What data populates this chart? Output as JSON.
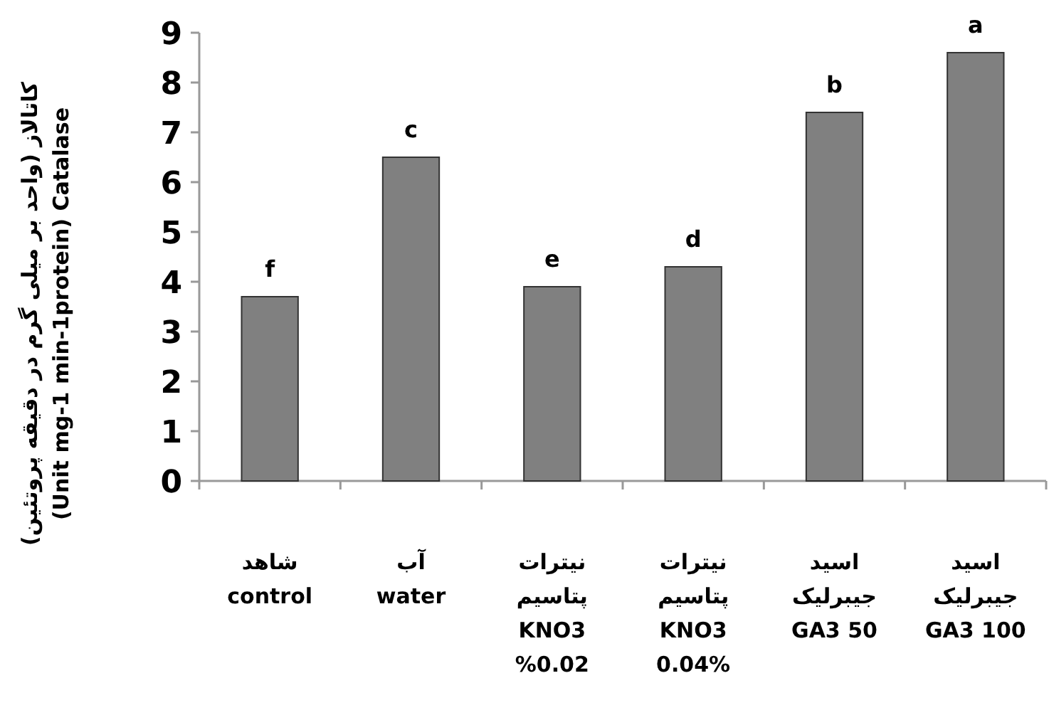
{
  "chart_data": {
    "type": "bar",
    "ylabel": "کاتالاز (واحد بر میلی گرم در دقیقه پروتئین)\n(Unit mg-1 min-1protein) Catalase",
    "categories": [
      "شاهد\ncontrol",
      "آب\nwater",
      "نیترات\nپتاسیم\nKNO3\n%0.02",
      "نیترات\nپتاسیم\nKNO3\n0.04%",
      "اسید\nجیبرلیک\nGA3 50",
      "اسید\nجیبرلیک\nGA3 100"
    ],
    "values": [
      3.7,
      6.5,
      3.9,
      4.3,
      7.4,
      8.6
    ],
    "color": "#808080",
    "ylim": [
      0,
      9
    ],
    "yticks": [
      0,
      1,
      2,
      3,
      4,
      5,
      6,
      7,
      8,
      9
    ],
    "annotations": [
      {
        "text": "f",
        "x": "شاهد\ncontrol",
        "y": 3.7
      },
      {
        "text": "c",
        "x": "آب\nwater",
        "y": 6.5
      },
      {
        "text": "e",
        "x": "نیترات\nپتاسیم\nKNO3\n%0.02",
        "y": 3.9
      },
      {
        "text": "d",
        "x": "نیترات\nپتاسیم\nKNO3\n0.04%",
        "y": 4.3
      },
      {
        "text": "b",
        "x": "اسید\nجیبرلیک\nGA3 50",
        "y": 7.4
      },
      {
        "text": "a",
        "x": "اسید\nجیبرلیک\nGA3 100",
        "y": 8.6
      }
    ]
  }
}
